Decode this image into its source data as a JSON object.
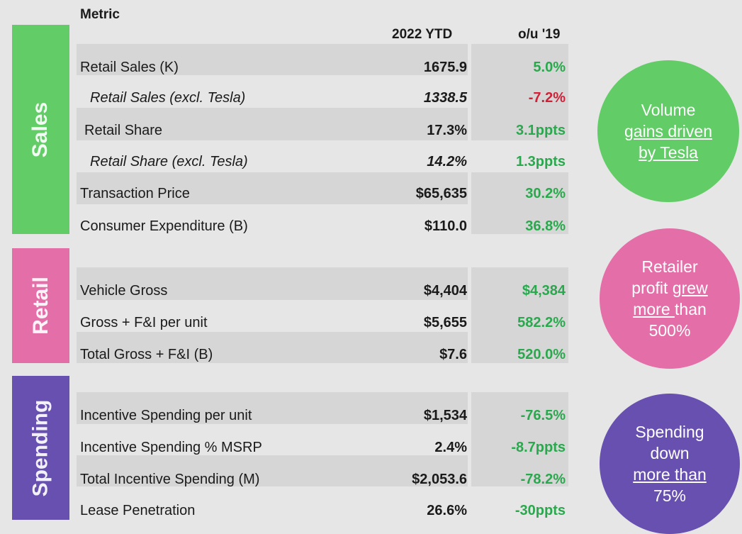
{
  "header": {
    "metric": "Metric",
    "col_value": "2022 YTD",
    "col_change": "o/u '19"
  },
  "colors": {
    "sales": "#62cc66",
    "retail": "#e46fa8",
    "spending": "#6750b0",
    "positive": "#2aa84d",
    "negative": "#d22036"
  },
  "sections": {
    "sales": {
      "title": "Sales",
      "rows": [
        {
          "label": "Retail Sales (K)",
          "value": "1675.9",
          "change": "5.0%"
        },
        {
          "label": "Retail Sales (excl. Tesla)",
          "value": "1338.5",
          "change": "-7.2%"
        },
        {
          "label": "Retail Share",
          "value": "17.3%",
          "change": "3.1ppts"
        },
        {
          "label": "Retail Share (excl. Tesla)",
          "value": "14.2%",
          "change": "1.3ppts"
        },
        {
          "label": "Transaction Price",
          "value": "$65,635",
          "change": "30.2%"
        },
        {
          "label": "Consumer Expenditure (B)",
          "value": "$110.0",
          "change": "36.8%"
        }
      ],
      "callout": {
        "line1": "Volume",
        "line2": "gains driven",
        "line3": "by Tesla"
      }
    },
    "retail": {
      "title": "Retail",
      "rows": [
        {
          "label": "Vehicle Gross",
          "value": "$4,404",
          "change": "$4,384"
        },
        {
          "label": "Gross + F&I per unit",
          "value": "$5,655",
          "change": "582.2%"
        },
        {
          "label": "Total Gross + F&I (B)",
          "value": "$7.6",
          "change": "520.0%"
        }
      ],
      "callout": {
        "line1": "Retailer",
        "line2a": "profit ",
        "line2b": "grew",
        "line3a": "more ",
        "line3b": "than",
        "line4": "500%"
      }
    },
    "spending": {
      "title": "Spending",
      "rows": [
        {
          "label": "Incentive Spending per unit",
          "value": "$1,534",
          "change": "-76.5%"
        },
        {
          "label": "Incentive Spending % MSRP",
          "value": "2.4%",
          "change": "-8.7ppts"
        },
        {
          "label": "Total Incentive Spending (M)",
          "value": "$2,053.6",
          "change": "-78.2%"
        },
        {
          "label": "Lease Penetration",
          "value": "26.6%",
          "change": "-30ppts"
        }
      ],
      "callout": {
        "line1": "Spending",
        "line2": "down",
        "line3": "more than",
        "line4": "75%"
      }
    }
  }
}
